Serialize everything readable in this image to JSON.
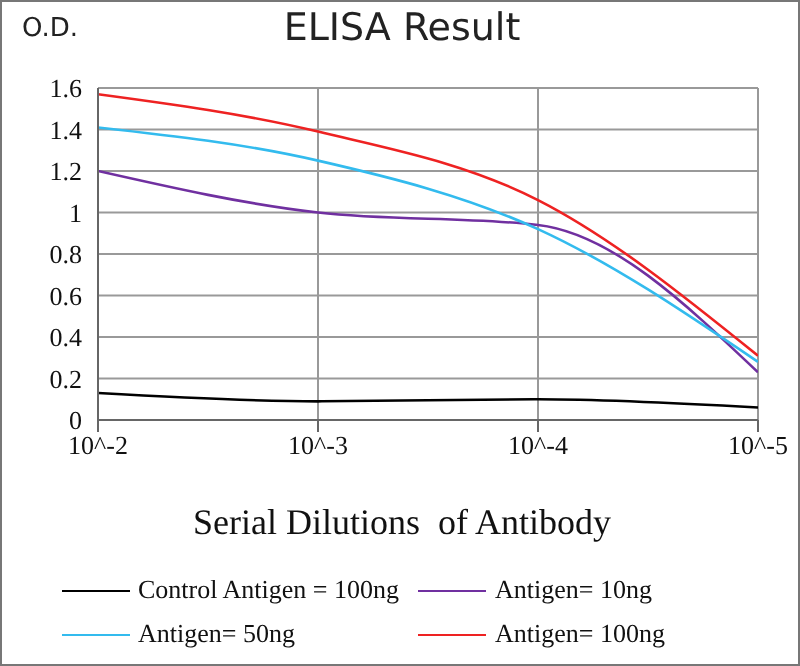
{
  "chart_data": {
    "type": "line",
    "title": "ELISA Result",
    "ylabel": "O.D.",
    "xlabel": "Serial Dilutions  of Antibody",
    "categories": [
      "10^-2",
      "10^-3",
      "10^-4",
      "10^-5"
    ],
    "series": [
      {
        "name": "Control Antigen = 100ng",
        "color": "#000000",
        "values": [
          0.13,
          0.09,
          0.1,
          0.06
        ]
      },
      {
        "name": "Antigen= 10ng",
        "color": "#7030a0",
        "values": [
          1.2,
          1.0,
          0.94,
          0.23
        ]
      },
      {
        "name": "Antigen= 50ng",
        "color": "#33bbee",
        "values": [
          1.41,
          1.25,
          0.92,
          0.28
        ]
      },
      {
        "name": "Antigen= 100ng",
        "color": "#ee2222",
        "values": [
          1.57,
          1.39,
          1.06,
          0.31
        ]
      }
    ],
    "ylim": [
      0,
      1.6
    ],
    "yticks": [
      0,
      0.2,
      0.4,
      0.6,
      0.8,
      1,
      1.2,
      1.4,
      1.6
    ],
    "grid": true,
    "legend": "bottom",
    "marker": "none",
    "line_style": "solid"
  }
}
